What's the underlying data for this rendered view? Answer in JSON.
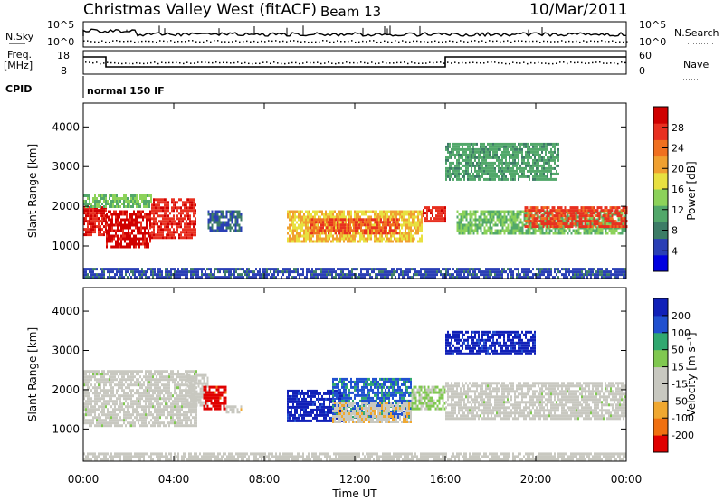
{
  "header": {
    "station": "Christmas Valley West (fitACF)",
    "beam": "Beam 13",
    "date": "10/Mar/2011"
  },
  "top_panels": {
    "nsky_label": "N.Sky",
    "nsky_ticks": [
      "10^5",
      "10^0"
    ],
    "nsearch_label": "N.Search",
    "nsearch_ticks": [
      "10^5",
      "10^0"
    ],
    "freq_label_1": "Freq.",
    "freq_label_2": "[MHz]",
    "freq_ticks": [
      "18",
      "8"
    ],
    "nave_label": "Nave",
    "nave_ticks": [
      "60",
      "0"
    ],
    "cpid_label": "CPID",
    "cpid_value": "normal 150 IF"
  },
  "axes": {
    "ylabel": "Slant Range [km]",
    "yticks": [
      "4000",
      "3000",
      "2000",
      "1000"
    ],
    "xlabel": "Time UT",
    "xticks": [
      "00:00",
      "04:00",
      "08:00",
      "12:00",
      "16:00",
      "20:00",
      "00:00"
    ]
  },
  "colorbars": {
    "power": {
      "label": "Power [dB]",
      "ticks": [
        "28",
        "24",
        "20",
        "16",
        "12",
        "8",
        "4"
      ],
      "colors": [
        "#0000e0",
        "#2a3fb5",
        "#3c7c66",
        "#52a86a",
        "#8cd25a",
        "#e8e040",
        "#f0a030",
        "#f07020",
        "#e83020",
        "#d00000"
      ]
    },
    "velocity": {
      "label": "Velocity [m s⁻¹]",
      "ticks": [
        "200",
        "100",
        "50",
        "15",
        "-15",
        "-50",
        "-100",
        "-200"
      ],
      "colors": [
        "#e00000",
        "#f07010",
        "#f0a830",
        "#c8c8c0",
        "#c8c8c0",
        "#80c850",
        "#30a870",
        "#2050d0",
        "#1020b8"
      ]
    }
  },
  "chart_data": [
    {
      "type": "heatmap",
      "title": "Power [dB]",
      "xlabel": "Time UT",
      "ylabel": "Slant Range [km]",
      "xlim": [
        0,
        24
      ],
      "ylim": [
        180,
        4600
      ],
      "clim": [
        0,
        30
      ],
      "regions": [
        {
          "t0": 0.0,
          "t1": 1.0,
          "r0": 1300,
          "r1": 2000,
          "value": 27
        },
        {
          "t0": 1.0,
          "t1": 3.0,
          "r0": 1000,
          "r1": 1900,
          "value": 28
        },
        {
          "t0": 3.0,
          "t1": 5.0,
          "r0": 1200,
          "r1": 2200,
          "value": 26
        },
        {
          "t0": 0.0,
          "t1": 3.0,
          "r0": 2000,
          "r1": 2300,
          "value": 12
        },
        {
          "t0": 5.5,
          "t1": 7.0,
          "r0": 1400,
          "r1": 1900,
          "value": 6
        },
        {
          "t0": 9.0,
          "t1": 15.0,
          "r0": 1100,
          "r1": 1900,
          "value": 18
        },
        {
          "t0": 10.0,
          "t1": 14.0,
          "r0": 1300,
          "r1": 1700,
          "value": 24
        },
        {
          "t0": 15.0,
          "t1": 16.0,
          "r0": 1600,
          "r1": 2000,
          "value": 26
        },
        {
          "t0": 16.5,
          "t1": 24.0,
          "r0": 1300,
          "r1": 1900,
          "value": 12
        },
        {
          "t0": 19.5,
          "t1": 24.0,
          "r0": 1500,
          "r1": 2000,
          "value": 25
        },
        {
          "t0": 16.0,
          "t1": 21.0,
          "r0": 2700,
          "r1": 3600,
          "value": 10
        },
        {
          "t0": 0.0,
          "t1": 24.0,
          "r0": 200,
          "r1": 450,
          "value": 5
        }
      ]
    },
    {
      "type": "heatmap",
      "title": "Velocity [m s⁻¹]",
      "xlabel": "Time UT",
      "ylabel": "Slant Range [km]",
      "xlim": [
        0,
        24
      ],
      "ylim": [
        180,
        4600
      ],
      "clim": [
        -250,
        250
      ],
      "regions": [
        {
          "t0": 0.0,
          "t1": 5.0,
          "r0": 1100,
          "r1": 2500,
          "value": 0
        },
        {
          "t0": 4.5,
          "t1": 5.5,
          "r0": 1600,
          "r1": 2400,
          "value": -40
        },
        {
          "t0": 5.3,
          "t1": 6.3,
          "r0": 1500,
          "r1": 2100,
          "value": -220
        },
        {
          "t0": 6.3,
          "t1": 7.0,
          "r0": 1400,
          "r1": 1600,
          "value": -60
        },
        {
          "t0": 9.0,
          "t1": 11.5,
          "r0": 1200,
          "r1": 2000,
          "value": 220
        },
        {
          "t0": 11.0,
          "t1": 14.5,
          "r0": 1300,
          "r1": 2300,
          "value": 150
        },
        {
          "t0": 11.0,
          "t1": 14.5,
          "r0": 1200,
          "r1": 1700,
          "value": -70
        },
        {
          "t0": 14.5,
          "t1": 16.0,
          "r0": 1500,
          "r1": 2100,
          "value": 40
        },
        {
          "t0": 16.0,
          "t1": 24.0,
          "r0": 1300,
          "r1": 2200,
          "value": 0
        },
        {
          "t0": 16.0,
          "t1": 20.0,
          "r0": 2900,
          "r1": 3500,
          "value": 220
        },
        {
          "t0": 0.0,
          "t1": 24.0,
          "r0": 200,
          "r1": 400,
          "value": -40
        }
      ]
    }
  ]
}
